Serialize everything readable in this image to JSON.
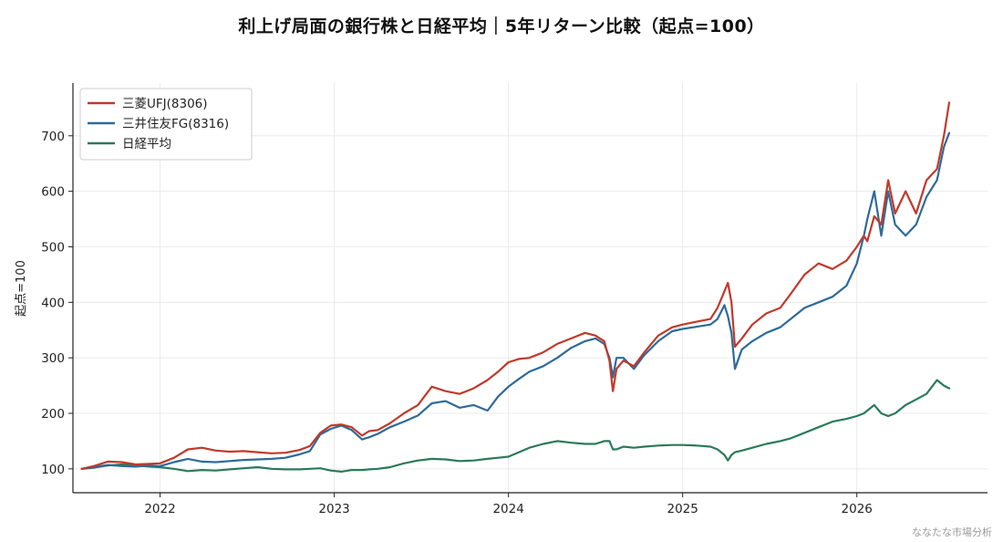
{
  "title": "利上げ局面の銀行株と日経平均｜5年リターン比較（起点=100）",
  "credit": "ななたな市場分析",
  "chart_data": {
    "type": "line",
    "title": "利上げ局面の銀行株と日経平均｜5年リターン比較（起点=100）",
    "xlabel": "",
    "ylabel": "起点=100",
    "xlim": [
      2021.5,
      2026.75
    ],
    "ylim": [
      57,
      795
    ],
    "x_ticks": [
      "2022",
      "2023",
      "2024",
      "2025",
      "2026"
    ],
    "y_ticks": [
      "100",
      "200",
      "300",
      "400",
      "500",
      "600",
      "700"
    ],
    "grid": true,
    "legend_position": "upper left",
    "series": [
      {
        "name": "三菱UFJ(8306)",
        "color": "#c0392b",
        "x": [
          2021.55,
          2021.62,
          2021.7,
          2021.78,
          2021.86,
          2021.94,
          2022.0,
          2022.08,
          2022.16,
          2022.24,
          2022.32,
          2022.4,
          2022.48,
          2022.56,
          2022.64,
          2022.72,
          2022.8,
          2022.86,
          2022.92,
          2022.98,
          2023.04,
          2023.1,
          2023.16,
          2023.2,
          2023.25,
          2023.32,
          2023.4,
          2023.48,
          2023.56,
          2023.64,
          2023.72,
          2023.8,
          2023.88,
          2023.94,
          2024.0,
          2024.06,
          2024.12,
          2024.2,
          2024.28,
          2024.36,
          2024.44,
          2024.5,
          2024.55,
          2024.58,
          2024.6,
          2024.62,
          2024.66,
          2024.72,
          2024.78,
          2024.86,
          2024.94,
          2025.0,
          2025.08,
          2025.16,
          2025.2,
          2025.24,
          2025.26,
          2025.28,
          2025.3,
          2025.34,
          2025.4,
          2025.48,
          2025.56,
          2025.62,
          2025.7,
          2025.78,
          2025.86,
          2025.94,
          2026.0,
          2026.04,
          2026.06,
          2026.1,
          2026.14,
          2026.18,
          2026.22,
          2026.28,
          2026.34,
          2026.4,
          2026.46,
          2026.5,
          2026.53
        ],
        "values": [
          100,
          105,
          113,
          112,
          108,
          109,
          110,
          120,
          135,
          138,
          133,
          131,
          132,
          130,
          128,
          129,
          134,
          141,
          165,
          178,
          180,
          175,
          160,
          168,
          170,
          182,
          200,
          215,
          248,
          240,
          235,
          245,
          260,
          275,
          292,
          298,
          300,
          310,
          325,
          335,
          345,
          340,
          330,
          295,
          240,
          280,
          295,
          285,
          310,
          340,
          355,
          360,
          365,
          370,
          390,
          420,
          435,
          400,
          320,
          335,
          360,
          380,
          390,
          415,
          450,
          470,
          460,
          475,
          500,
          520,
          510,
          555,
          540,
          620,
          560,
          600,
          560,
          620,
          640,
          700,
          760
        ]
      },
      {
        "name": "三井住友FG(8316)",
        "color": "#2e6a9a",
        "x": [
          2021.55,
          2021.62,
          2021.7,
          2021.78,
          2021.86,
          2021.94,
          2022.0,
          2022.08,
          2022.16,
          2022.24,
          2022.32,
          2022.4,
          2022.48,
          2022.56,
          2022.64,
          2022.72,
          2022.8,
          2022.86,
          2022.92,
          2022.98,
          2023.04,
          2023.1,
          2023.16,
          2023.2,
          2023.25,
          2023.32,
          2023.4,
          2023.48,
          2023.56,
          2023.64,
          2023.72,
          2023.8,
          2023.88,
          2023.94,
          2024.0,
          2024.06,
          2024.12,
          2024.2,
          2024.28,
          2024.36,
          2024.44,
          2024.5,
          2024.55,
          2024.58,
          2024.6,
          2024.62,
          2024.66,
          2024.72,
          2024.78,
          2024.86,
          2024.94,
          2025.0,
          2025.08,
          2025.16,
          2025.2,
          2025.24,
          2025.26,
          2025.28,
          2025.3,
          2025.34,
          2025.4,
          2025.48,
          2025.56,
          2025.62,
          2025.7,
          2025.78,
          2025.86,
          2025.94,
          2026.0,
          2026.04,
          2026.06,
          2026.1,
          2026.14,
          2026.18,
          2026.22,
          2026.28,
          2026.34,
          2026.4,
          2026.46,
          2026.5,
          2026.53
        ],
        "values": [
          100,
          103,
          107,
          105,
          104,
          106,
          105,
          112,
          118,
          113,
          112,
          114,
          116,
          117,
          118,
          120,
          126,
          132,
          162,
          172,
          178,
          170,
          153,
          157,
          163,
          175,
          185,
          196,
          218,
          222,
          210,
          215,
          205,
          230,
          248,
          262,
          275,
          285,
          300,
          318,
          330,
          335,
          325,
          300,
          265,
          300,
          300,
          280,
          305,
          330,
          348,
          352,
          356,
          360,
          370,
          395,
          375,
          345,
          280,
          315,
          330,
          345,
          355,
          370,
          390,
          400,
          410,
          430,
          470,
          520,
          550,
          600,
          520,
          600,
          540,
          520,
          540,
          590,
          620,
          680,
          705
        ]
      },
      {
        "name": "日経平均",
        "color": "#2a7a5a",
        "x": [
          2021.55,
          2021.62,
          2021.7,
          2021.78,
          2021.86,
          2021.94,
          2022.0,
          2022.08,
          2022.16,
          2022.24,
          2022.32,
          2022.4,
          2022.48,
          2022.56,
          2022.64,
          2022.72,
          2022.8,
          2022.86,
          2022.92,
          2022.98,
          2023.04,
          2023.1,
          2023.16,
          2023.2,
          2023.25,
          2023.32,
          2023.4,
          2023.48,
          2023.56,
          2023.64,
          2023.72,
          2023.8,
          2023.88,
          2023.94,
          2024.0,
          2024.06,
          2024.12,
          2024.2,
          2024.28,
          2024.36,
          2024.44,
          2024.5,
          2024.55,
          2024.58,
          2024.6,
          2024.62,
          2024.66,
          2024.72,
          2024.78,
          2024.86,
          2024.94,
          2025.0,
          2025.08,
          2025.16,
          2025.2,
          2025.24,
          2025.26,
          2025.28,
          2025.3,
          2025.34,
          2025.4,
          2025.48,
          2025.56,
          2025.62,
          2025.7,
          2025.78,
          2025.86,
          2025.94,
          2026.0,
          2026.04,
          2026.06,
          2026.1,
          2026.14,
          2026.18,
          2026.22,
          2026.28,
          2026.34,
          2026.4,
          2026.46,
          2026.5,
          2026.53
        ],
        "values": [
          100,
          102,
          106,
          108,
          106,
          104,
          103,
          100,
          96,
          98,
          97,
          99,
          101,
          103,
          100,
          99,
          99,
          100,
          101,
          97,
          95,
          98,
          98,
          99,
          100,
          103,
          110,
          115,
          118,
          117,
          114,
          115,
          118,
          120,
          122,
          130,
          138,
          145,
          150,
          147,
          145,
          145,
          150,
          150,
          135,
          135,
          140,
          138,
          140,
          142,
          143,
          143,
          142,
          140,
          135,
          125,
          115,
          125,
          130,
          133,
          138,
          145,
          150,
          155,
          165,
          175,
          185,
          190,
          195,
          200,
          205,
          215,
          200,
          195,
          200,
          215,
          225,
          235,
          260,
          250,
          245
        ]
      }
    ]
  }
}
